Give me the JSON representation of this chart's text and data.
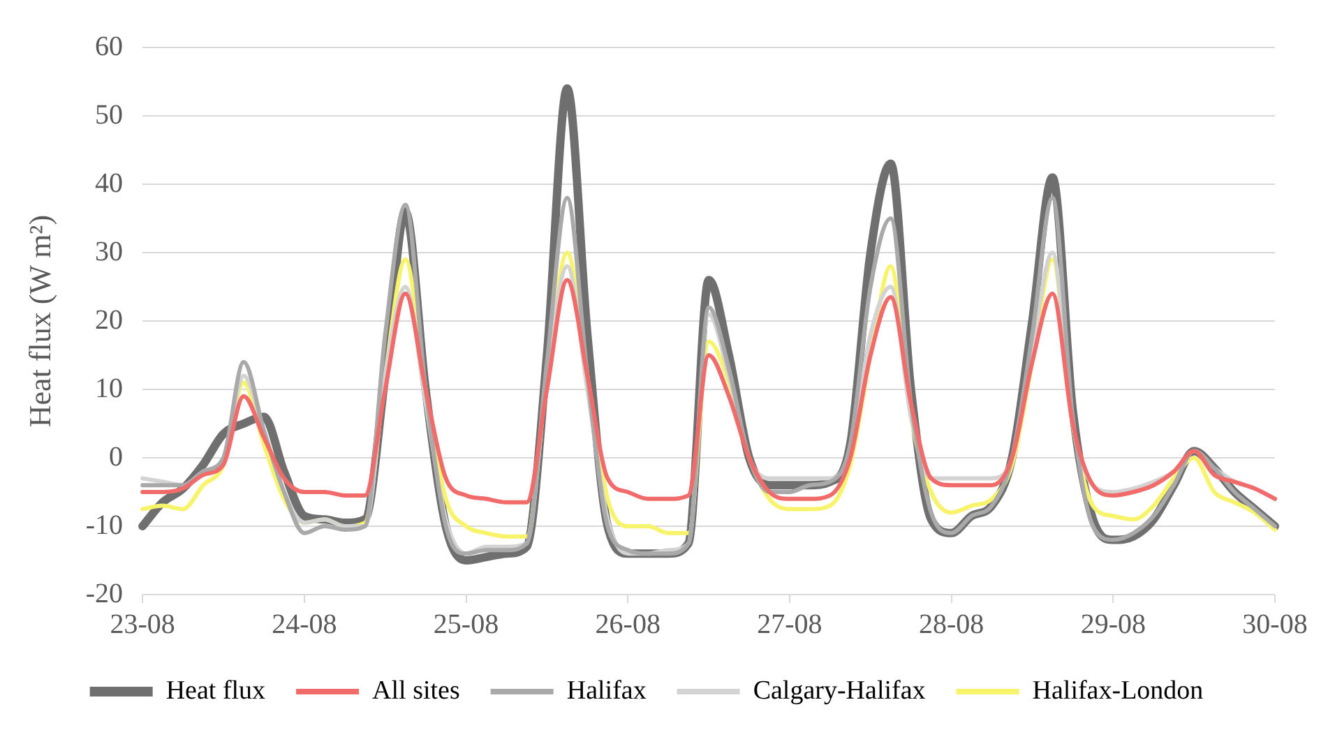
{
  "chart_data": {
    "type": "line",
    "ylabel": "Heat flux (W m²)",
    "categories": [
      "23-08",
      null,
      null,
      null,
      null,
      null,
      null,
      null,
      "24-08",
      null,
      null,
      null,
      null,
      null,
      null,
      null,
      "25-08",
      null,
      null,
      null,
      null,
      null,
      null,
      null,
      "26-08",
      null,
      null,
      null,
      null,
      null,
      null,
      null,
      "27-08",
      null,
      null,
      null,
      null,
      null,
      null,
      null,
      "28-08",
      null,
      null,
      null,
      null,
      null,
      null,
      null,
      "29-08",
      null,
      null,
      null,
      null,
      null,
      null,
      null,
      "30-08"
    ],
    "ylim": [
      -20,
      60
    ],
    "yticks": [
      -20,
      -10,
      0,
      10,
      20,
      30,
      40,
      50,
      60
    ],
    "grid": "y",
    "legend": "bottom",
    "marker": "none",
    "line_style": "solid",
    "series": [
      {
        "name": "Heat flux",
        "color": "#6f6f6f",
        "values": [
          -10,
          -6.5,
          -4.5,
          -1,
          3.5,
          5,
          6,
          -2,
          -8.5,
          -9,
          -9.5,
          -9,
          12,
          36,
          10,
          -10,
          -15,
          -14.5,
          -14,
          -13,
          15,
          54,
          18,
          -10,
          -14,
          -14,
          -14,
          -12.5,
          26,
          15,
          0,
          -4,
          -4,
          -4,
          -3.5,
          2,
          30,
          43,
          10,
          -9,
          -11,
          -8.5,
          -7,
          0,
          20,
          41,
          7,
          -9,
          -12,
          -11.5,
          -9,
          -4,
          1,
          -1.5,
          -5,
          -7.5,
          -10
        ]
      },
      {
        "name": "All sites",
        "color": "#f26b6b",
        "values": [
          -5,
          -5,
          -4.5,
          -2.5,
          -1,
          9,
          3,
          -3,
          -5,
          -5,
          -5.5,
          -5.5,
          10,
          24,
          10,
          -3,
          -5.5,
          -6,
          -6.5,
          -6.5,
          10,
          26,
          12,
          -3,
          -5,
          -6,
          -6,
          -5.5,
          15,
          9,
          0,
          -5,
          -6,
          -6,
          -5.5,
          0,
          15,
          23.5,
          8,
          -3,
          -4,
          -4,
          -4,
          0,
          14,
          24,
          5,
          -4,
          -5.5,
          -5,
          -4,
          -2,
          1,
          -2.5,
          -3.5,
          -4.5,
          -6
        ]
      },
      {
        "name": "Halifax",
        "color": "#a9a9a9",
        "values": [
          -4,
          -4,
          -4,
          -2,
          0,
          14,
          4,
          -5,
          -11,
          -10,
          -10.5,
          -10,
          18,
          37,
          10,
          -10,
          -14,
          -13.5,
          -13.5,
          -12.5,
          14,
          38,
          12,
          -10,
          -13.5,
          -14,
          -14,
          -12.5,
          22,
          13,
          0,
          -5,
          -5,
          -4,
          -3.5,
          2,
          25,
          35,
          8,
          -8,
          -11,
          -8.5,
          -7,
          0,
          18,
          38,
          6,
          -10,
          -12,
          -11,
          -8.5,
          -4,
          1,
          -1.5,
          -5,
          -7.5,
          -10
        ]
      },
      {
        "name": "Calgary-Halifax",
        "color": "#d3d3d3",
        "values": [
          -3,
          -3.5,
          -4,
          -2,
          0,
          12,
          4,
          -5,
          -9.5,
          -9,
          -10,
          -10,
          12,
          25,
          8,
          -9,
          -14,
          -13,
          -13,
          -12.5,
          12,
          28,
          10,
          -9,
          -14,
          -14,
          -13.5,
          -12.5,
          21,
          12,
          0,
          -3,
          -3,
          -3,
          -3,
          1,
          18,
          25,
          6,
          -3,
          -3,
          -3,
          -3,
          0,
          16,
          30,
          5,
          -4,
          -5,
          -4.5,
          -3.5,
          -2,
          1,
          -1.5,
          -3.5,
          -4.5,
          -6
        ]
      },
      {
        "name": "Halifax-London",
        "color": "#f7f36a",
        "values": [
          -7.5,
          -7,
          -7.5,
          -4,
          -1,
          11,
          2,
          -6,
          -9.5,
          -9,
          -10,
          -9.5,
          12,
          29,
          10,
          -6,
          -10,
          -11,
          -11.5,
          -11.5,
          12,
          30,
          12,
          -6,
          -10,
          -10,
          -11,
          -11,
          17,
          11,
          0,
          -6,
          -7.5,
          -7.5,
          -7,
          -1,
          15,
          28,
          6,
          -5,
          -8,
          -7,
          -6,
          -1,
          14,
          29,
          5,
          -7,
          -8.5,
          -9,
          -7,
          -3,
          0,
          -5,
          -6.5,
          -8,
          -10.5
        ]
      }
    ]
  }
}
